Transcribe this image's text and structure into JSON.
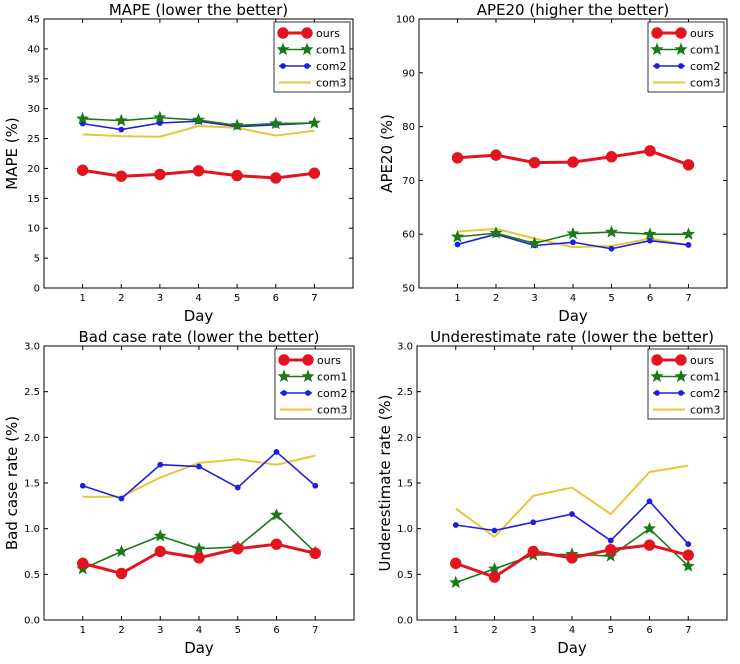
{
  "chart_data": [
    {
      "type": "line",
      "title": "MAPE (lower the better)",
      "xlabel": "Day",
      "ylabel": "MAPE (%)",
      "x": [
        1,
        2,
        3,
        4,
        5,
        6,
        7
      ],
      "xlim": [
        0,
        8
      ],
      "ylim": [
        0,
        45
      ],
      "yticks": [
        "0",
        "5",
        "10",
        "15",
        "20",
        "25",
        "30",
        "35",
        "40",
        "45"
      ],
      "grid": false,
      "legend": "top-right",
      "series": [
        {
          "name": "ours",
          "color": "#e3141f",
          "values": [
            19.7,
            18.7,
            19.0,
            19.6,
            18.8,
            18.4,
            19.2
          ]
        },
        {
          "name": "com1",
          "color": "#1a7a1a",
          "values": [
            28.3,
            28.0,
            28.5,
            28.1,
            27.2,
            27.5,
            27.6
          ]
        },
        {
          "name": "com2",
          "color": "#1f1fe0",
          "values": [
            27.5,
            26.5,
            27.6,
            27.9,
            27.0,
            27.3,
            27.6
          ]
        },
        {
          "name": "com3",
          "color": "#e8c63a",
          "values": [
            25.7,
            25.4,
            25.3,
            27.1,
            26.8,
            25.5,
            26.3
          ]
        }
      ]
    },
    {
      "type": "line",
      "title": "APE20 (higher the better)",
      "xlabel": "Day",
      "ylabel": "APE20 (%)",
      "x": [
        1,
        2,
        3,
        4,
        5,
        6,
        7
      ],
      "xlim": [
        0,
        8
      ],
      "ylim": [
        50,
        100
      ],
      "yticks": [
        "50",
        "60",
        "70",
        "80",
        "90",
        "100"
      ],
      "grid": false,
      "legend": "top-right",
      "series": [
        {
          "name": "ours",
          "color": "#e3141f",
          "values": [
            74.2,
            74.7,
            73.3,
            73.4,
            74.4,
            75.5,
            72.9
          ]
        },
        {
          "name": "com1",
          "color": "#1a7a1a",
          "values": [
            59.5,
            60.2,
            58.3,
            60.1,
            60.4,
            60.0,
            60.0
          ]
        },
        {
          "name": "com2",
          "color": "#1f1fe0",
          "values": [
            58.1,
            60.0,
            57.9,
            58.5,
            57.3,
            58.8,
            58.0
          ]
        },
        {
          "name": "com3",
          "color": "#e8c63a",
          "values": [
            60.5,
            61.0,
            59.2,
            57.6,
            57.8,
            59.2,
            58.0
          ]
        }
      ]
    },
    {
      "type": "line",
      "title": "Bad case rate (lower the better)",
      "xlabel": "Day",
      "ylabel": "Bad case rate (%)",
      "x": [
        1,
        2,
        3,
        4,
        5,
        6,
        7
      ],
      "xlim": [
        0,
        8
      ],
      "ylim": [
        0,
        3
      ],
      "yticks": [
        "0.0",
        "0.5",
        "1.0",
        "1.5",
        "2.0",
        "2.5",
        "3.0"
      ],
      "grid": false,
      "legend": "top-right",
      "series": [
        {
          "name": "ours",
          "color": "#e3141f",
          "values": [
            0.62,
            0.51,
            0.75,
            0.68,
            0.78,
            0.83,
            0.73
          ]
        },
        {
          "name": "com1",
          "color": "#1a7a1a",
          "values": [
            0.56,
            0.75,
            0.92,
            0.78,
            0.8,
            1.15,
            0.74
          ]
        },
        {
          "name": "com2",
          "color": "#1f1fe0",
          "values": [
            1.47,
            1.33,
            1.7,
            1.68,
            1.45,
            1.84,
            1.47
          ]
        },
        {
          "name": "com3",
          "color": "#e8c63a",
          "values": [
            1.35,
            1.35,
            1.56,
            1.72,
            1.76,
            1.7,
            1.8
          ]
        }
      ]
    },
    {
      "type": "line",
      "title": "Underestimate rate (lower the better)",
      "xlabel": "Day",
      "ylabel": "Underestimate rate (%)",
      "x": [
        1,
        2,
        3,
        4,
        5,
        6,
        7
      ],
      "xlim": [
        0,
        8
      ],
      "ylim": [
        0,
        3
      ],
      "yticks": [
        "0.0",
        "0.5",
        "1.0",
        "1.5",
        "2.0",
        "2.5",
        "3.0"
      ],
      "grid": false,
      "legend": "top-right",
      "series": [
        {
          "name": "ours",
          "color": "#e3141f",
          "values": [
            0.62,
            0.47,
            0.75,
            0.68,
            0.77,
            0.82,
            0.71
          ]
        },
        {
          "name": "com1",
          "color": "#1a7a1a",
          "values": [
            0.41,
            0.56,
            0.71,
            0.72,
            0.7,
            1.0,
            0.59
          ]
        },
        {
          "name": "com2",
          "color": "#1f1fe0",
          "values": [
            1.04,
            0.98,
            1.07,
            1.16,
            0.87,
            1.3,
            0.83
          ]
        },
        {
          "name": "com3",
          "color": "#e8c63a",
          "values": [
            1.22,
            0.91,
            1.36,
            1.45,
            1.16,
            1.62,
            1.69
          ]
        }
      ]
    }
  ]
}
